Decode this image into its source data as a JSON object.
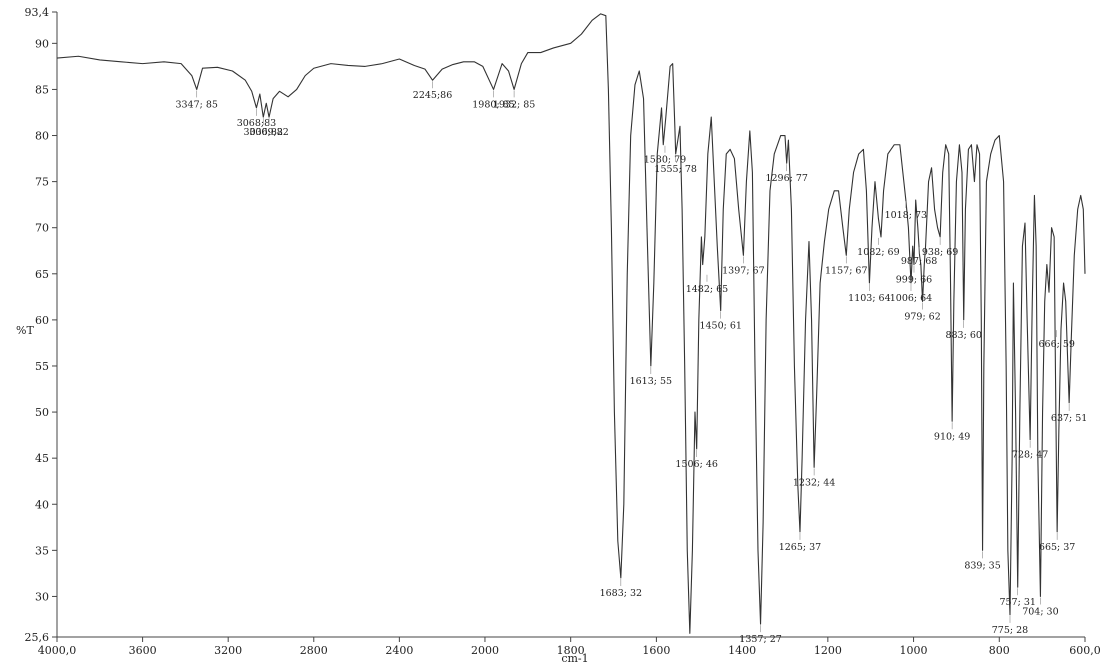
{
  "chart_data": {
    "type": "line",
    "title": "",
    "xlabel": "cm-1",
    "ylabel": "%T",
    "xlim": [
      4000,
      600
    ],
    "ylim": [
      25.6,
      93.4
    ],
    "x_reversed": true,
    "grid": false,
    "x_ticks": [
      "4000,0",
      "3600",
      "3200",
      "2800",
      "2400",
      "2000",
      "1800",
      "1600",
      "1400",
      "1200",
      "1000",
      "800",
      "600,0"
    ],
    "y_ticks": [
      "93,4",
      "90",
      "85",
      "80",
      "75",
      "70",
      "65",
      "60",
      "55",
      "50",
      "45",
      "40",
      "35",
      "30",
      "25,6"
    ],
    "series": [
      {
        "color": "#333333",
        "points": [
          [
            4000,
            88.4
          ],
          [
            3900,
            88.6
          ],
          [
            3800,
            88.2
          ],
          [
            3700,
            88.0
          ],
          [
            3600,
            87.8
          ],
          [
            3500,
            88.0
          ],
          [
            3420,
            87.8
          ],
          [
            3370,
            86.5
          ],
          [
            3347,
            85.0
          ],
          [
            3320,
            87.3
          ],
          [
            3250,
            87.4
          ],
          [
            3180,
            87.0
          ],
          [
            3120,
            86.0
          ],
          [
            3090,
            84.8
          ],
          [
            3068,
            83.0
          ],
          [
            3052,
            84.5
          ],
          [
            3036,
            82.0
          ],
          [
            3022,
            83.5
          ],
          [
            3009,
            82.0
          ],
          [
            2990,
            84.0
          ],
          [
            2960,
            84.8
          ],
          [
            2920,
            84.2
          ],
          [
            2880,
            85.0
          ],
          [
            2840,
            86.5
          ],
          [
            2800,
            87.3
          ],
          [
            2720,
            87.8
          ],
          [
            2640,
            87.6
          ],
          [
            2560,
            87.5
          ],
          [
            2480,
            87.8
          ],
          [
            2400,
            88.3
          ],
          [
            2330,
            87.6
          ],
          [
            2280,
            87.2
          ],
          [
            2245,
            86.0
          ],
          [
            2200,
            87.2
          ],
          [
            2150,
            87.7
          ],
          [
            2100,
            88.0
          ],
          [
            2050,
            88.0
          ],
          [
            2010,
            87.5
          ],
          [
            1980,
            85.0
          ],
          [
            1960,
            87.8
          ],
          [
            1945,
            87.0
          ],
          [
            1932,
            85.0
          ],
          [
            1915,
            87.8
          ],
          [
            1900,
            89.0
          ],
          [
            1870,
            89.0
          ],
          [
            1840,
            89.5
          ],
          [
            1800,
            90.0
          ],
          [
            1775,
            91.0
          ],
          [
            1750,
            92.5
          ],
          [
            1730,
            93.2
          ],
          [
            1718,
            93.0
          ],
          [
            1712,
            85.0
          ],
          [
            1705,
            70.0
          ],
          [
            1698,
            50.0
          ],
          [
            1690,
            36.0
          ],
          [
            1683,
            32.0
          ],
          [
            1676,
            40.0
          ],
          [
            1668,
            65.0
          ],
          [
            1660,
            80.0
          ],
          [
            1650,
            85.5
          ],
          [
            1640,
            87.0
          ],
          [
            1630,
            84.0
          ],
          [
            1622,
            70.0
          ],
          [
            1613,
            55.0
          ],
          [
            1606,
            64.0
          ],
          [
            1598,
            78.0
          ],
          [
            1592,
            81.0
          ],
          [
            1588,
            83.0
          ],
          [
            1584,
            79.0
          ],
          [
            1578,
            82.0
          ],
          [
            1568,
            87.5
          ],
          [
            1562,
            87.8
          ],
          [
            1557,
            81.0
          ],
          [
            1555,
            78.0
          ],
          [
            1550,
            79.5
          ],
          [
            1545,
            81.0
          ],
          [
            1540,
            72.0
          ],
          [
            1534,
            55.0
          ],
          [
            1528,
            35.0
          ],
          [
            1522,
            26.0
          ],
          [
            1516,
            35.0
          ],
          [
            1510,
            50.0
          ],
          [
            1506,
            46.0
          ],
          [
            1501,
            60.0
          ],
          [
            1495,
            69.0
          ],
          [
            1492,
            66.0
          ],
          [
            1487,
            69.0
          ],
          [
            1480,
            78.0
          ],
          [
            1472,
            82.0
          ],
          [
            1465,
            75.0
          ],
          [
            1458,
            68.0
          ],
          [
            1450,
            61.0
          ],
          [
            1444,
            72.0
          ],
          [
            1437,
            78.0
          ],
          [
            1428,
            78.5
          ],
          [
            1418,
            77.5
          ],
          [
            1408,
            72.0
          ],
          [
            1397,
            67.0
          ],
          [
            1390,
            75.0
          ],
          [
            1382,
            80.5
          ],
          [
            1376,
            76.0
          ],
          [
            1370,
            55.0
          ],
          [
            1363,
            35.0
          ],
          [
            1357,
            27.0
          ],
          [
            1351,
            38.0
          ],
          [
            1344,
            60.0
          ],
          [
            1335,
            74.0
          ],
          [
            1325,
            78.0
          ],
          [
            1310,
            80.0
          ],
          [
            1300,
            80.0
          ],
          [
            1296,
            77.0
          ],
          [
            1292,
            79.5
          ],
          [
            1285,
            72.0
          ],
          [
            1278,
            55.0
          ],
          [
            1270,
            42.0
          ],
          [
            1265,
            37.0
          ],
          [
            1260,
            45.0
          ],
          [
            1252,
            60.0
          ],
          [
            1244,
            68.5
          ],
          [
            1238,
            60.0
          ],
          [
            1232,
            44.0
          ],
          [
            1226,
            52.0
          ],
          [
            1218,
            64.0
          ],
          [
            1208,
            68.5
          ],
          [
            1198,
            72.0
          ],
          [
            1185,
            74.0
          ],
          [
            1175,
            74.0
          ],
          [
            1165,
            70.0
          ],
          [
            1157,
            67.0
          ],
          [
            1150,
            72.0
          ],
          [
            1140,
            76.0
          ],
          [
            1128,
            78.0
          ],
          [
            1117,
            78.5
          ],
          [
            1110,
            74.0
          ],
          [
            1103,
            64.0
          ],
          [
            1097,
            70.0
          ],
          [
            1090,
            75.0
          ],
          [
            1082,
            71.0
          ],
          [
            1076,
            69.0
          ],
          [
            1070,
            74.0
          ],
          [
            1060,
            78.0
          ],
          [
            1045,
            79.0
          ],
          [
            1032,
            79.0
          ],
          [
            1025,
            76.0
          ],
          [
            1018,
            73.0
          ],
          [
            1012,
            70.0
          ],
          [
            1006,
            64.0
          ],
          [
            1002,
            68.0
          ],
          [
            999,
            66.0
          ],
          [
            995,
            73.0
          ],
          [
            990,
            70.0
          ],
          [
            986,
            67.0
          ],
          [
            983,
            66.0
          ],
          [
            979,
            62.0
          ],
          [
            975,
            66.0
          ],
          [
            972,
            68.0
          ],
          [
            965,
            75.0
          ],
          [
            958,
            76.5
          ],
          [
            951,
            72.0
          ],
          [
            944,
            70.0
          ],
          [
            938,
            69.0
          ],
          [
            932,
            76.0
          ],
          [
            925,
            79.0
          ],
          [
            918,
            78.0
          ],
          [
            914,
            65.0
          ],
          [
            910,
            49.0
          ],
          [
            906,
            62.0
          ],
          [
            900,
            75.0
          ],
          [
            893,
            79.0
          ],
          [
            887,
            76.0
          ],
          [
            883,
            60.0
          ],
          [
            879,
            72.0
          ],
          [
            872,
            78.5
          ],
          [
            865,
            79.0
          ],
          [
            858,
            75.0
          ],
          [
            852,
            79.0
          ],
          [
            846,
            78.0
          ],
          [
            842,
            60.0
          ],
          [
            839,
            35.0
          ],
          [
            836,
            55.0
          ],
          [
            830,
            75.0
          ],
          [
            820,
            78.0
          ],
          [
            810,
            79.5
          ],
          [
            800,
            80.0
          ],
          [
            790,
            75.0
          ],
          [
            784,
            55.0
          ],
          [
            780,
            35.0
          ],
          [
            775,
            28.0
          ],
          [
            770,
            45.0
          ],
          [
            767,
            64.0
          ],
          [
            762,
            50.0
          ],
          [
            757,
            31.0
          ],
          [
            752,
            50.0
          ],
          [
            746,
            68.0
          ],
          [
            740,
            70.5
          ],
          [
            735,
            60.0
          ],
          [
            728,
            47.0
          ],
          [
            723,
            62.0
          ],
          [
            718,
            73.5
          ],
          [
            714,
            68.0
          ],
          [
            710,
            45.0
          ],
          [
            704,
            30.0
          ],
          [
            699,
            50.0
          ],
          [
            694,
            62.0
          ],
          [
            689,
            66.0
          ],
          [
            684,
            63.0
          ],
          [
            678,
            70.0
          ],
          [
            672,
            69.0
          ],
          [
            668,
            50.0
          ],
          [
            665,
            37.0
          ],
          [
            661,
            48.0
          ],
          [
            656,
            59.0
          ],
          [
            650,
            64.0
          ],
          [
            645,
            62.0
          ],
          [
            640,
            55.0
          ],
          [
            637,
            51.0
          ],
          [
            632,
            58.0
          ],
          [
            625,
            67.0
          ],
          [
            617,
            72.0
          ],
          [
            610,
            73.5
          ],
          [
            604,
            72.0
          ],
          [
            600,
            65.0
          ]
        ]
      }
    ],
    "peak_labels": [
      {
        "text": "3347; 85",
        "x": 3347,
        "y": 85
      },
      {
        "text": "3068;83",
        "x": 3068,
        "y": 83
      },
      {
        "text": "3036;82",
        "x": 3036,
        "y": 82
      },
      {
        "text": "3009;82",
        "x": 3009,
        "y": 82
      },
      {
        "text": "2245;86",
        "x": 2245,
        "y": 86
      },
      {
        "text": "1980; 85",
        "x": 1980,
        "y": 85
      },
      {
        "text": "1932; 85",
        "x": 1932,
        "y": 85
      },
      {
        "text": "1580; 79",
        "x": 1580,
        "y": 79
      },
      {
        "text": "1555; 78",
        "x": 1555,
        "y": 78
      },
      {
        "text": "1613; 55",
        "x": 1613,
        "y": 55
      },
      {
        "text": "1683; 32",
        "x": 1683,
        "y": 32
      },
      {
        "text": "1506; 46",
        "x": 1506,
        "y": 46
      },
      {
        "text": "1482; 65",
        "x": 1482,
        "y": 65
      },
      {
        "text": "1450; 61",
        "x": 1450,
        "y": 61
      },
      {
        "text": "1397; 67",
        "x": 1397,
        "y": 67
      },
      {
        "text": "1357; 27",
        "x": 1357,
        "y": 27
      },
      {
        "text": "1296; 77",
        "x": 1296,
        "y": 77
      },
      {
        "text": "1265; 37",
        "x": 1265,
        "y": 37
      },
      {
        "text": "1232; 44",
        "x": 1232,
        "y": 44
      },
      {
        "text": "1157; 67",
        "x": 1157,
        "y": 67
      },
      {
        "text": "1103; 64",
        "x": 1103,
        "y": 64
      },
      {
        "text": "1082; 69",
        "x": 1082,
        "y": 69
      },
      {
        "text": "1018; 73",
        "x": 1018,
        "y": 73
      },
      {
        "text": "999; 66",
        "x": 999,
        "y": 66
      },
      {
        "text": "1006; 64",
        "x": 1006,
        "y": 64
      },
      {
        "text": "987; 68",
        "x": 987,
        "y": 68
      },
      {
        "text": "938; 69",
        "x": 938,
        "y": 69
      },
      {
        "text": "979; 62",
        "x": 979,
        "y": 62
      },
      {
        "text": "883; 60",
        "x": 883,
        "y": 60
      },
      {
        "text": "910; 49",
        "x": 910,
        "y": 49
      },
      {
        "text": "839; 35",
        "x": 839,
        "y": 35
      },
      {
        "text": "775; 28",
        "x": 775,
        "y": 28
      },
      {
        "text": "757; 31",
        "x": 757,
        "y": 31
      },
      {
        "text": "728; 47",
        "x": 728,
        "y": 47
      },
      {
        "text": "704; 30",
        "x": 704,
        "y": 30
      },
      {
        "text": "665; 37",
        "x": 665,
        "y": 37
      },
      {
        "text": "666; 59",
        "x": 666,
        "y": 59
      },
      {
        "text": "637; 51",
        "x": 637,
        "y": 51
      }
    ]
  }
}
